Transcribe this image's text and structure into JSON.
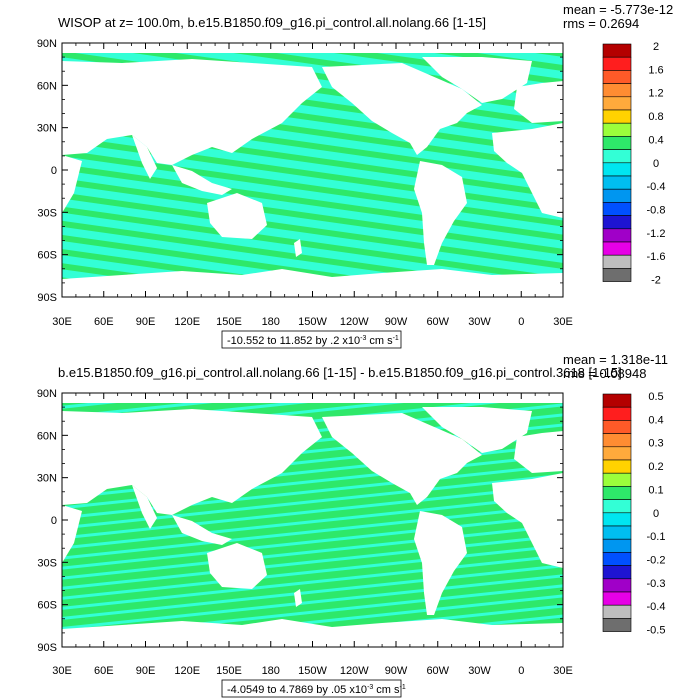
{
  "colors": {
    "ocean_cyan": "#33ffd6",
    "ocean_green": "#2ee86a",
    "land": "#ffffff",
    "frame": "#000000"
  },
  "chart_data": [
    {
      "type": "heatmap",
      "title": "WISOP at z= 100.0m, b.e15.B1850.f09_g16.pi_control.all.nolang.66 [1-15]",
      "stats": {
        "mean": "mean = -5.773e-12",
        "rms": "rms = 0.2694"
      },
      "x_ticks": [
        "30E",
        "60E",
        "90E",
        "120E",
        "150E",
        "180",
        "150W",
        "120W",
        "90W",
        "60W",
        "30W",
        "0",
        "30E"
      ],
      "y_ticks": [
        "90N",
        "60N",
        "30N",
        "0",
        "30S",
        "60S",
        "90S"
      ],
      "xlim": [
        30,
        390
      ],
      "ylim": [
        -90,
        90
      ],
      "range_label": "-10.552 to 11.852 by .2 x10",
      "range_exp": "-3",
      "range_unit": "cm s",
      "range_unit_exp": "-1",
      "colorbar": {
        "labels": [
          "2",
          "1.6",
          "1.2",
          "0.8",
          "0.4",
          "0",
          "-0.4",
          "-0.8",
          "-1.2",
          "-1.6",
          "-2"
        ],
        "colors": [
          "#b40000",
          "#ff1e1e",
          "#ff5a28",
          "#ff8c32",
          "#ffaa3c",
          "#ffd200",
          "#9bff3c",
          "#2ee86a",
          "#33ffd6",
          "#00e6f0",
          "#00bef0",
          "#0096f0",
          "#0050ff",
          "#1e14d2",
          "#a000c8",
          "#e600e6",
          "#bebebe",
          "#6e6e6e"
        ]
      }
    },
    {
      "type": "heatmap",
      "title": "b.e15.B1850.f09_g16.pi_control.all.nolang.66 [1-15] - b.e15.B1850.f09_g16.pi_control.3618 [1-15]",
      "stats": {
        "mean": "mean = 1.318e-11",
        "rms": "rms = 0.08948"
      },
      "x_ticks": [
        "30E",
        "60E",
        "90E",
        "120E",
        "150E",
        "180",
        "150W",
        "120W",
        "90W",
        "60W",
        "30W",
        "0",
        "30E"
      ],
      "y_ticks": [
        "90N",
        "60N",
        "30N",
        "0",
        "30S",
        "60S",
        "90S"
      ],
      "xlim": [
        30,
        390
      ],
      "ylim": [
        -90,
        90
      ],
      "range_label": "-4.0549 to 4.7869 by .05 x10",
      "range_exp": "-3",
      "range_unit": "cm s",
      "range_unit_exp": "-1",
      "colorbar": {
        "labels": [
          "0.5",
          "0.4",
          "0.3",
          "0.2",
          "0.1",
          "0",
          "-0.1",
          "-0.2",
          "-0.3",
          "-0.4",
          "-0.5"
        ],
        "colors": [
          "#b40000",
          "#ff1e1e",
          "#ff5a28",
          "#ff8c32",
          "#ffaa3c",
          "#ffd200",
          "#9bff3c",
          "#2ee86a",
          "#33ffd6",
          "#00e6f0",
          "#00bef0",
          "#0096f0",
          "#0050ff",
          "#1e14d2",
          "#a000c8",
          "#e600e6",
          "#bebebe",
          "#6e6e6e"
        ]
      }
    }
  ]
}
